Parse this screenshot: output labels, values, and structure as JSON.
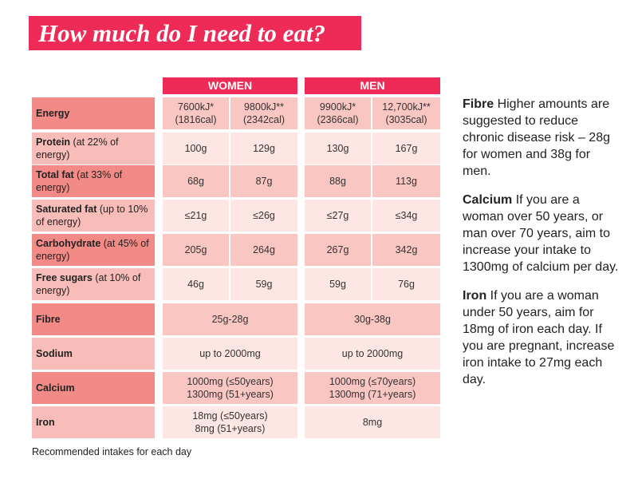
{
  "title": "How much do I need to eat?",
  "headers": {
    "women": "WOMEN",
    "men": "MEN"
  },
  "rows": [
    {
      "label": "Energy",
      "note": "",
      "cells": [
        "7600kJ*\n(1816cal)",
        "9800kJ**\n(2342cal)",
        "9900kJ*\n(2366cal)",
        "12,700kJ**\n(3035cal)"
      ]
    },
    {
      "label": "Protein",
      "note": " (at 22% of energy)",
      "cells": [
        "100g",
        "129g",
        "130g",
        "167g"
      ]
    },
    {
      "label": "Total fat",
      "note": " (at 33% of energy)",
      "cells": [
        "68g",
        "87g",
        "88g",
        "113g"
      ]
    },
    {
      "label": "Saturated fat",
      "note": " (up to 10% of energy)",
      "cells": [
        "≤21g",
        "≤26g",
        "≤27g",
        "≤34g"
      ]
    },
    {
      "label": "Carbohydrate",
      "note": " (at 45% of energy)",
      "cells": [
        "205g",
        "264g",
        "267g",
        "342g"
      ]
    },
    {
      "label": "Free sugars",
      "note": " (at 10% of energy)",
      "cells": [
        "46g",
        "59g",
        "59g",
        "76g"
      ]
    },
    {
      "label": "Fibre",
      "note": "",
      "cells": [
        "25g-28g",
        "30g-38g"
      ]
    },
    {
      "label": "Sodium",
      "note": "",
      "cells": [
        "up to 2000mg",
        "up to 2000mg"
      ]
    },
    {
      "label": "Calcium",
      "note": "",
      "cells": [
        "1000mg (≤50years)\n1300mg (51+years)",
        "1000mg (≤70years)\n1300mg (71+years)"
      ]
    },
    {
      "label": "Iron",
      "note": "",
      "cells": [
        "18mg (≤50years)\n8mg (51+years)",
        "8mg"
      ]
    }
  ],
  "footnote": "Recommended intakes for each day",
  "notes": [
    {
      "title": "Fibre",
      "text": " Higher amounts are suggested to reduce chronic disease risk – 28g for women and 38g for men."
    },
    {
      "title": "Calcium",
      "text": " If you are a woman over 50 years, or man over 70 years, aim to increase your intake to 1300mg of calcium per day."
    },
    {
      "title": "Iron",
      "text": " If you are a woman under 50 years, aim for 18mg of iron each day. If you are pregnant, increase iron intake to 27mg each day."
    }
  ],
  "colors": {
    "accent": "#ee2a56",
    "label_dark": "#f28b87",
    "label_light": "#f9bdb9",
    "cell_dark": "#f9c6c2",
    "cell_light": "#fde6e3"
  }
}
